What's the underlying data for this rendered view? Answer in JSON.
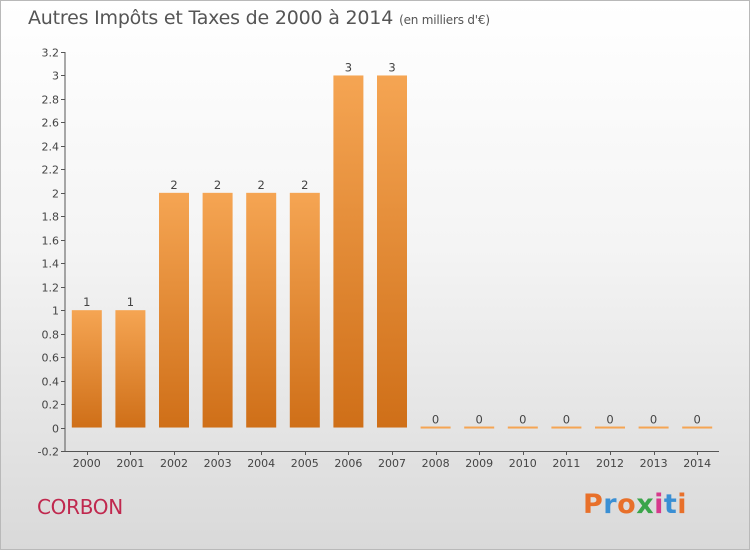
{
  "header": {
    "title": "Autres Impôts et Taxes de 2000 à 2014",
    "unit": "(en milliers d'€)"
  },
  "footer": {
    "commune": "CORBON",
    "brand": "Proxiti"
  },
  "colors": {
    "bar_light": "#f5a553",
    "bar_dark": "#cf6f18",
    "commune_text": "#c0284e",
    "brand_letters": [
      "#e8702a",
      "#3a8fd4",
      "#e8702a",
      "#3aa54a",
      "#d63a8c",
      "#3a8fd4",
      "#e8702a"
    ]
  },
  "chart_data": {
    "type": "bar",
    "title": "Autres Impôts et Taxes de 2000 à 2014",
    "subtitle": "(en milliers d'€)",
    "categories": [
      "2000",
      "2001",
      "2002",
      "2003",
      "2004",
      "2005",
      "2006",
      "2007",
      "2008",
      "2009",
      "2010",
      "2011",
      "2012",
      "2013",
      "2014"
    ],
    "values": [
      1,
      1,
      2,
      2,
      2,
      2,
      3,
      3,
      0,
      0,
      0,
      0,
      0,
      0,
      0
    ],
    "data_labels": [
      "1",
      "1",
      "2",
      "2",
      "2",
      "2",
      "3",
      "3",
      "0",
      "0",
      "0",
      "0",
      "0",
      "0",
      "0"
    ],
    "ylim": [
      -0.2,
      3.2
    ],
    "yticks": [
      -0.2,
      0,
      0.2,
      0.4,
      0.6,
      0.8,
      1,
      1.2,
      1.4,
      1.6,
      1.8,
      2,
      2.2,
      2.4,
      2.6,
      2.8,
      3,
      3.2
    ],
    "ytick_labels": [
      "-0.2",
      "0",
      "0.2",
      "0.4",
      "0.6",
      "0.8",
      "1",
      "1.2",
      "1.4",
      "1.6",
      "1.8",
      "2",
      "2.2",
      "2.4",
      "2.6",
      "2.8",
      "3",
      "3.2"
    ],
    "grid": false,
    "legend": "none"
  }
}
